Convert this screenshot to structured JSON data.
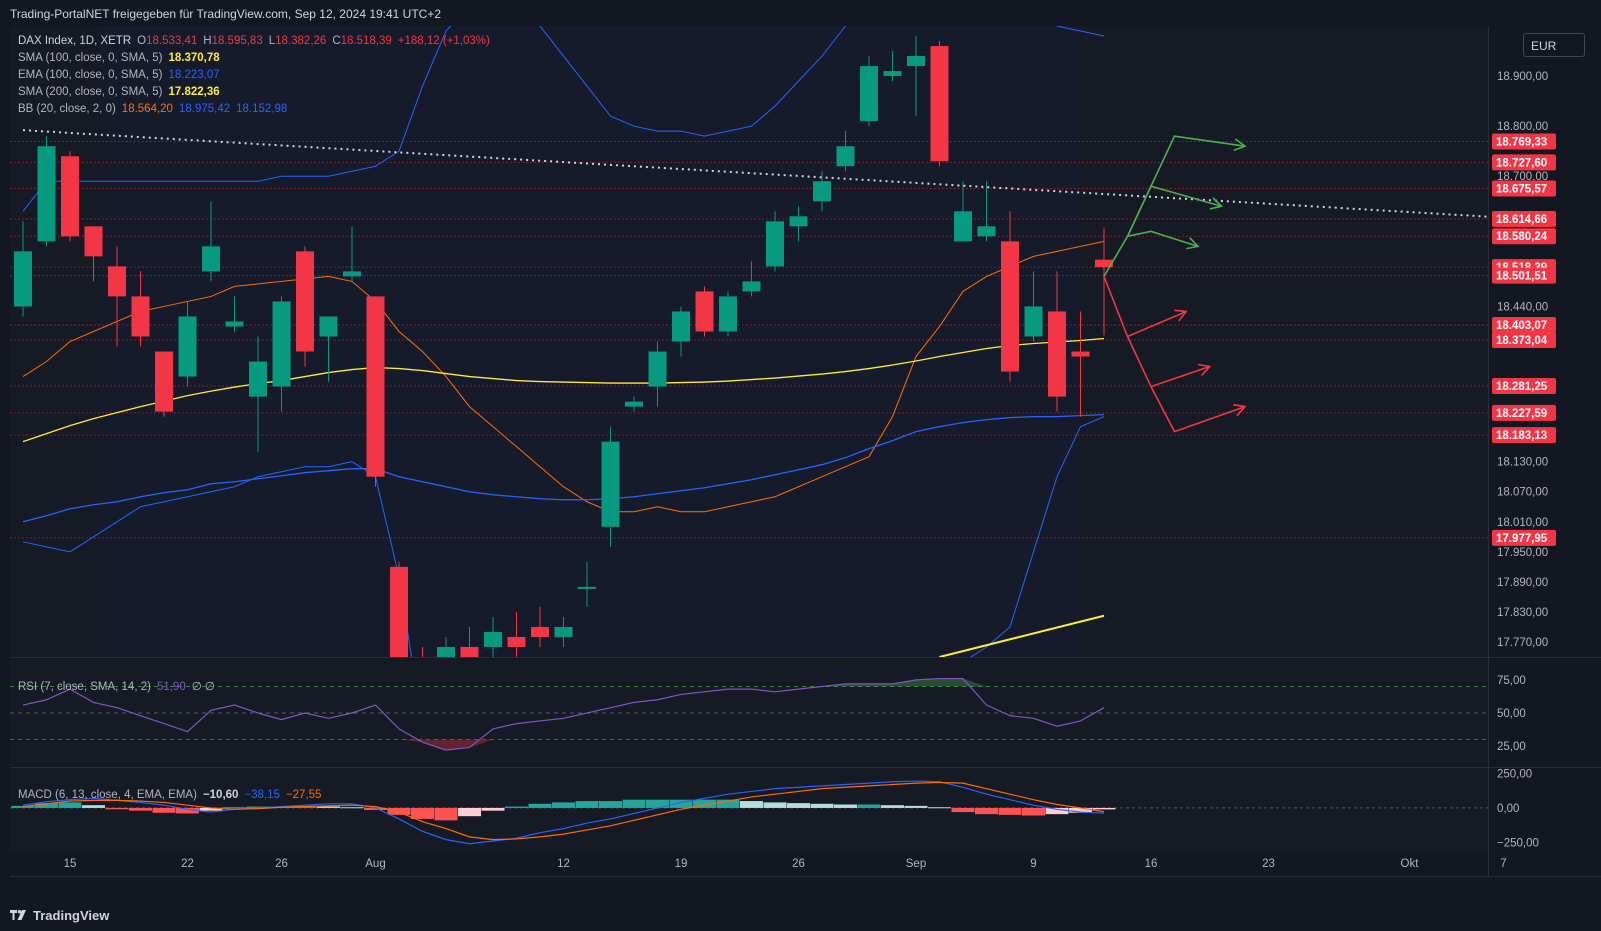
{
  "header": {
    "attribution": "Trading-PortalNET freigegeben für TradingView.com, Sep 12, 2024 19:41 UTC+2",
    "currency": "EUR",
    "brand": "TradingView"
  },
  "legend": {
    "symbol": "DAX Index, 1D, XETR",
    "ohlc": [
      {
        "label": "O",
        "value": "18.533,41"
      },
      {
        "label": "H",
        "value": "18.595,83"
      },
      {
        "label": "L",
        "value": "18.382,26"
      },
      {
        "label": "C",
        "value": "18.518,39"
      }
    ],
    "change": "+188,12 (+1,03%)",
    "sma100": {
      "label": "SMA (100, close, 0, SMA, 5)",
      "value": "18.370,78"
    },
    "ema100": {
      "label": "EMA (100, close, 0, SMA, 5)",
      "value": "18.223,07"
    },
    "sma200": {
      "label": "SMA (200, close, 0, SMA, 5)",
      "value": "17.822,36"
    },
    "bb": {
      "label": "BB (20, close, 2, 0)",
      "basis": "18.564,20",
      "upper": "18.975,42",
      "lower": "18.152,98"
    },
    "rsi": {
      "label": "RSI (7, close, SMA, 14, 2)",
      "value": "51,90",
      "extra": "∅ ∅"
    },
    "macd": {
      "label": "MACD (6, 13, close, 4, EMA, EMA)",
      "hist": "−10,60",
      "macd": "−38,15",
      "signal": "−27,55"
    }
  },
  "colors": {
    "background": "#131722",
    "up": "#089981",
    "down": "#f23645",
    "sma100": "#ffeb3b",
    "ema100": "#2962ff",
    "bb_basis": "#ff6d00",
    "bb_band": "#2962ff",
    "rsi": "#7e57c2",
    "green_arrow": "#4caf50",
    "red_arrow": "#f23645"
  },
  "chart_data": {
    "type": "candlestick",
    "price_axis": {
      "ylim": [
        17740,
        19000
      ],
      "ticks": [
        "18.900,00",
        "18.800,00",
        "18.700,00",
        "18.440,00",
        "18.130,00",
        "18.070,00",
        "18.010,00",
        "17.950,00",
        "17.890,00",
        "17.830,00",
        "17.770,00"
      ],
      "tick_values": [
        18900,
        18800,
        18700,
        18440,
        18130,
        18070,
        18010,
        17950,
        17890,
        17830,
        17770
      ]
    },
    "x_axis": {
      "tick_labels": [
        "15",
        "22",
        "26",
        "Aug",
        "12",
        "19",
        "26",
        "Sep",
        "9",
        "16",
        "23",
        "Okt",
        "7"
      ],
      "tick_index": [
        2,
        7,
        11,
        15,
        23,
        28,
        33,
        38,
        43,
        48,
        53,
        59,
        63
      ]
    },
    "candles": [
      {
        "o": 18440,
        "h": 18610,
        "l": 18420,
        "c": 18550
      },
      {
        "o": 18570,
        "h": 18780,
        "l": 18560,
        "c": 18760
      },
      {
        "o": 18740,
        "h": 18750,
        "l": 18570,
        "c": 18580
      },
      {
        "o": 18600,
        "h": 18600,
        "l": 18490,
        "c": 18540
      },
      {
        "o": 18520,
        "h": 18560,
        "l": 18360,
        "c": 18460
      },
      {
        "o": 18460,
        "h": 18510,
        "l": 18360,
        "c": 18380
      },
      {
        "o": 18350,
        "h": 18350,
        "l": 18220,
        "c": 18230
      },
      {
        "o": 18300,
        "h": 18450,
        "l": 18280,
        "c": 18420
      },
      {
        "o": 18510,
        "h": 18650,
        "l": 18490,
        "c": 18560
      },
      {
        "o": 18400,
        "h": 18460,
        "l": 18390,
        "c": 18410
      },
      {
        "o": 18260,
        "h": 18380,
        "l": 18150,
        "c": 18330
      },
      {
        "o": 18280,
        "h": 18460,
        "l": 18230,
        "c": 18450
      },
      {
        "o": 18550,
        "h": 18560,
        "l": 18320,
        "c": 18350
      },
      {
        "o": 18380,
        "h": 18420,
        "l": 18290,
        "c": 18420
      },
      {
        "o": 18500,
        "h": 18600,
        "l": 18490,
        "c": 18510
      },
      {
        "o": 18460,
        "h": 18460,
        "l": 18080,
        "c": 18100
      },
      {
        "o": 17920,
        "h": 17930,
        "l": 17700,
        "c": 17720
      },
      {
        "o": 17720,
        "h": 17760,
        "l": 17680,
        "c": 17700
      },
      {
        "o": 17720,
        "h": 17780,
        "l": 17690,
        "c": 17760
      },
      {
        "o": 17760,
        "h": 17800,
        "l": 17700,
        "c": 17720
      },
      {
        "o": 17760,
        "h": 17820,
        "l": 17720,
        "c": 17790
      },
      {
        "o": 17780,
        "h": 17830,
        "l": 17690,
        "c": 17760
      },
      {
        "o": 17800,
        "h": 17840,
        "l": 17760,
        "c": 17780
      },
      {
        "o": 17780,
        "h": 17820,
        "l": 17760,
        "c": 17800
      },
      {
        "o": 17880,
        "h": 17930,
        "l": 17840,
        "c": 17880
      },
      {
        "o": 18000,
        "h": 18200,
        "l": 17960,
        "c": 18170
      },
      {
        "o": 18240,
        "h": 18260,
        "l": 18230,
        "c": 18250
      },
      {
        "o": 18280,
        "h": 18370,
        "l": 18240,
        "c": 18350
      },
      {
        "o": 18370,
        "h": 18440,
        "l": 18340,
        "c": 18430
      },
      {
        "o": 18470,
        "h": 18480,
        "l": 18380,
        "c": 18390
      },
      {
        "o": 18390,
        "h": 18470,
        "l": 18380,
        "c": 18460
      },
      {
        "o": 18470,
        "h": 18530,
        "l": 18460,
        "c": 18490
      },
      {
        "o": 18520,
        "h": 18630,
        "l": 18510,
        "c": 18610
      },
      {
        "o": 18600,
        "h": 18640,
        "l": 18570,
        "c": 18620
      },
      {
        "o": 18650,
        "h": 18710,
        "l": 18630,
        "c": 18690
      },
      {
        "o": 18720,
        "h": 18790,
        "l": 18710,
        "c": 18760
      },
      {
        "o": 18810,
        "h": 18940,
        "l": 18800,
        "c": 18920
      },
      {
        "o": 18900,
        "h": 18950,
        "l": 18890,
        "c": 18910
      },
      {
        "o": 18920,
        "h": 18980,
        "l": 18820,
        "c": 18940
      },
      {
        "o": 18960,
        "h": 18970,
        "l": 18720,
        "c": 18730
      },
      {
        "o": 18570,
        "h": 18690,
        "l": 18570,
        "c": 18630
      },
      {
        "o": 18580,
        "h": 18690,
        "l": 18570,
        "c": 18600
      },
      {
        "o": 18570,
        "h": 18630,
        "l": 18290,
        "c": 18310
      },
      {
        "o": 18380,
        "h": 18510,
        "l": 18370,
        "c": 18440
      },
      {
        "o": 18430,
        "h": 18510,
        "l": 18230,
        "c": 18260
      },
      {
        "o": 18350,
        "h": 18430,
        "l": 18220,
        "c": 18340
      },
      {
        "o": 18533.41,
        "h": 18595.83,
        "l": 18382.26,
        "c": 18518.39
      }
    ],
    "sma100": [
      18170,
      18186,
      18202,
      18216,
      18228,
      18240,
      18251,
      18262,
      18271,
      18279,
      18286,
      18292,
      18300,
      18308,
      18314,
      18318,
      18316,
      18312,
      18306,
      18300,
      18296,
      18292,
      18290,
      18289,
      18288,
      18287,
      18287,
      18287,
      18288,
      18289,
      18291,
      18294,
      18297,
      18301,
      18305,
      18310,
      18316,
      18323,
      18331,
      18340,
      18348,
      18356,
      18362,
      18366,
      18369,
      18372,
      18376
    ],
    "ema100": [
      18010,
      18022,
      18036,
      18044,
      18050,
      18060,
      18068,
      18074,
      18086,
      18090,
      18096,
      18102,
      18108,
      18112,
      18116,
      18116,
      18100,
      18090,
      18080,
      18070,
      18064,
      18060,
      18056,
      18054,
      18054,
      18056,
      18060,
      18066,
      18072,
      18078,
      18086,
      18094,
      18104,
      18114,
      18124,
      18138,
      18156,
      18172,
      18190,
      18200,
      18208,
      18214,
      18218,
      18220,
      18220,
      18222,
      18224
    ],
    "bb_basis": [
      18300,
      18330,
      18370,
      18390,
      18410,
      18430,
      18440,
      18450,
      18460,
      18480,
      18485,
      18490,
      18495,
      18500,
      18490,
      18450,
      18390,
      18350,
      18300,
      18240,
      18200,
      18160,
      18120,
      18080,
      18050,
      18030,
      18030,
      18040,
      18030,
      18030,
      18040,
      18050,
      18060,
      18080,
      18100,
      18120,
      18140,
      18220,
      18340,
      18400,
      18470,
      18500,
      18520,
      18540,
      18550,
      18560,
      18570
    ],
    "bb_upper": [
      18630,
      18690,
      18690,
      18690,
      18690,
      18690,
      18690,
      18690,
      18690,
      18690,
      18690,
      18700,
      18700,
      18700,
      18710,
      18720,
      18750,
      18880,
      18990,
      19040,
      19050,
      19040,
      19000,
      18940,
      18880,
      18820,
      18800,
      18790,
      18790,
      18780,
      18790,
      18800,
      18840,
      18890,
      18940,
      19000,
      19060,
      19120,
      19160,
      19200,
      19210,
      19180,
      19120,
      19060,
      19000,
      18990,
      18980
    ],
    "bb_lower": [
      17970,
      17960,
      17950,
      17980,
      18010,
      18040,
      18050,
      18060,
      18070,
      18080,
      18100,
      18110,
      18120,
      18120,
      18130,
      18100,
      17900,
      17600,
      17400,
      17300,
      17280,
      17280,
      17310,
      17370,
      17440,
      17530,
      17600,
      17640,
      17620,
      17600,
      17620,
      17640,
      17640,
      17640,
      17640,
      17640,
      17650,
      17680,
      17720,
      17740,
      17730,
      17760,
      17800,
      17950,
      18100,
      18200,
      18220
    ],
    "sma200_line": {
      "from": {
        "index": 39,
        "value": 17740
      },
      "to": {
        "index": 46,
        "value": 17822.36
      }
    },
    "trendline_dotted": {
      "from": {
        "index": 0,
        "value": 18792
      },
      "to": {
        "index": 63.5,
        "value": 18616
      }
    },
    "horizontal_levels": [
      {
        "value": 18769.33,
        "label": "18.769,33"
      },
      {
        "value": 18727.6,
        "label": "18.727,60"
      },
      {
        "value": 18675.57,
        "label": "18.675,57"
      },
      {
        "value": 18614.66,
        "label": "18.614,66"
      },
      {
        "value": 18580.24,
        "label": "18.580,24"
      },
      {
        "value": 18518.39,
        "label": "18.518,39"
      },
      {
        "value": 18501.51,
        "label": "18.501,51"
      },
      {
        "value": 18403.07,
        "label": "18.403,07"
      },
      {
        "value": 18373.04,
        "label": "18.373,04"
      },
      {
        "value": 18281.25,
        "label": "18.281,25"
      },
      {
        "value": 18227.59,
        "label": "18.227,59"
      },
      {
        "value": 18183.13,
        "label": "18.183,13"
      },
      {
        "value": 17977.95,
        "label": "17.977,95"
      }
    ],
    "scenario_arrows": {
      "origin": {
        "index": 46,
        "value": 18500
      },
      "green": [
        {
          "path": [
            [
              46,
              18500
            ],
            [
              47,
              18580
            ],
            [
              49,
              18780
            ],
            [
              52,
              18760
            ]
          ]
        },
        {
          "path": [
            [
              47,
              18580
            ],
            [
              48,
              18680
            ],
            [
              51,
              18640
            ]
          ]
        },
        {
          "path": [
            [
              47,
              18580
            ],
            [
              48,
              18590
            ],
            [
              50,
              18560
            ]
          ]
        }
      ],
      "red": [
        {
          "path": [
            [
              46,
              18500
            ],
            [
              47,
              18380
            ],
            [
              49.5,
              18430
            ]
          ]
        },
        {
          "path": [
            [
              47,
              18380
            ],
            [
              48,
              18280
            ],
            [
              50.5,
              18320
            ]
          ]
        },
        {
          "path": [
            [
              48,
              18280
            ],
            [
              49,
              18190
            ],
            [
              52,
              18240
            ]
          ]
        }
      ]
    },
    "rsi": {
      "ylim": [
        10,
        90
      ],
      "levels": [
        70,
        50,
        30
      ],
      "tick_labels": [
        "75,00",
        "50,00",
        "25,00"
      ],
      "tick_values": [
        75,
        50,
        25
      ],
      "values": [
        56,
        60,
        68,
        58,
        54,
        48,
        42,
        36,
        52,
        56,
        50,
        45,
        50,
        46,
        50,
        56,
        38,
        28,
        22,
        24,
        38,
        42,
        44,
        46,
        50,
        54,
        58,
        60,
        64,
        66,
        68,
        68,
        66,
        68,
        70,
        72,
        72,
        72,
        75,
        76,
        76,
        56,
        48,
        46,
        40,
        44,
        54
      ]
    },
    "macd": {
      "ylim": [
        -320,
        290
      ],
      "tick_labels": [
        "250,00",
        "0,00",
        "−250,00"
      ],
      "tick_values": [
        250,
        0,
        -250
      ],
      "macd": [
        20,
        45,
        60,
        70,
        55,
        40,
        20,
        -10,
        -30,
        -10,
        0,
        10,
        20,
        30,
        30,
        0,
        -80,
        -170,
        -230,
        -260,
        -240,
        -220,
        -180,
        -150,
        -110,
        -80,
        -40,
        0,
        40,
        70,
        100,
        120,
        140,
        150,
        160,
        170,
        180,
        190,
        195,
        190,
        150,
        100,
        60,
        20,
        -10,
        -30,
        -38
      ],
      "signal": [
        10,
        30,
        50,
        55,
        55,
        50,
        40,
        20,
        0,
        -10,
        -5,
        5,
        10,
        15,
        20,
        10,
        -30,
        -100,
        -150,
        -210,
        -230,
        -225,
        -210,
        -190,
        -160,
        -130,
        -90,
        -50,
        -10,
        20,
        50,
        80,
        100,
        120,
        140,
        150,
        160,
        170,
        180,
        185,
        180,
        140,
        100,
        60,
        25,
        0,
        -27.55
      ],
      "hist": [
        15,
        35,
        40,
        20,
        -10,
        -20,
        -35,
        -40,
        -20,
        5,
        10,
        10,
        15,
        10,
        5,
        -15,
        -50,
        -80,
        -90,
        -60,
        -20,
        10,
        30,
        40,
        50,
        50,
        60,
        60,
        60,
        60,
        60,
        50,
        40,
        35,
        30,
        25,
        25,
        20,
        15,
        5,
        -30,
        -45,
        -50,
        -55,
        -45,
        -35,
        -10.6
      ]
    }
  }
}
